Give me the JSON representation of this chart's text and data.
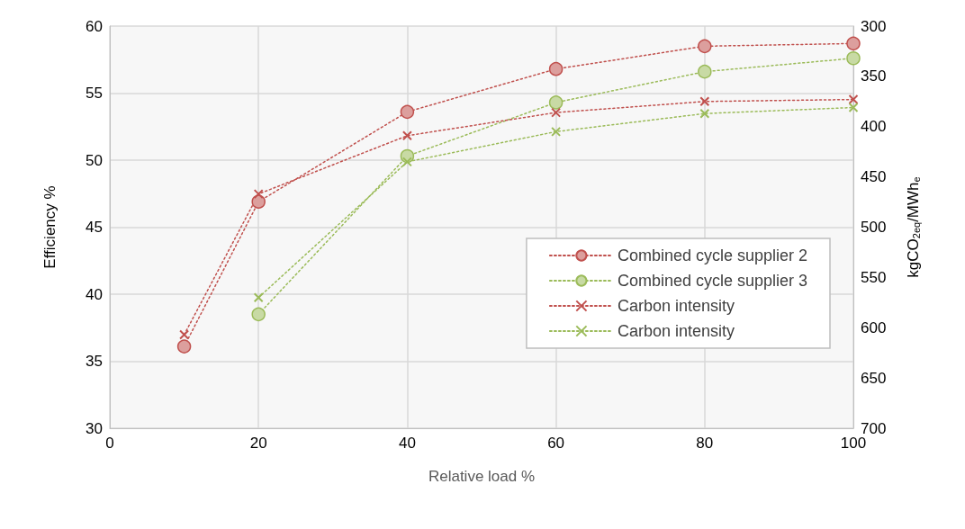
{
  "chart_data": {
    "type": "line",
    "xlabel": "Relative load %",
    "ylabel": "Efficiency %",
    "y2label": "kgCO$_{2eq}$/MWh$_{e}$",
    "x": [
      10,
      20,
      40,
      60,
      80,
      100
    ],
    "series": [
      {
        "name": "Combined cycle supplier 2",
        "color": "#c0504d",
        "marker": "circle",
        "values": [
          36.1,
          46.9,
          53.6,
          56.8,
          58.5,
          58.7
        ]
      },
      {
        "name": "Combined cycle supplier 3",
        "color": "#9bbb59",
        "marker": "circle",
        "values": [
          null,
          38.5,
          50.3,
          54.3,
          56.6,
          57.6
        ]
      },
      {
        "name": "Carbon intensity",
        "color": "#c0504d",
        "marker": "cross",
        "axis": "y2",
        "values": [
          607,
          467,
          409,
          386,
          375,
          373
        ]
      },
      {
        "name": "Carbon intensity",
        "color": "#9bbb59",
        "marker": "cross",
        "axis": "y2",
        "values": [
          null,
          570,
          435,
          405,
          387,
          381
        ]
      }
    ],
    "xlim": [
      0,
      100
    ],
    "xticks": [
      0,
      20,
      40,
      60,
      80,
      100
    ],
    "ylim": [
      30,
      60
    ],
    "yticks": [
      30,
      35,
      40,
      45,
      50,
      55,
      60
    ],
    "y2lim": [
      700,
      300
    ],
    "y2ticks": [
      300,
      350,
      400,
      450,
      500,
      550,
      600,
      650,
      700
    ],
    "grid": true,
    "legend": "right",
    "line_style": "dotted"
  }
}
